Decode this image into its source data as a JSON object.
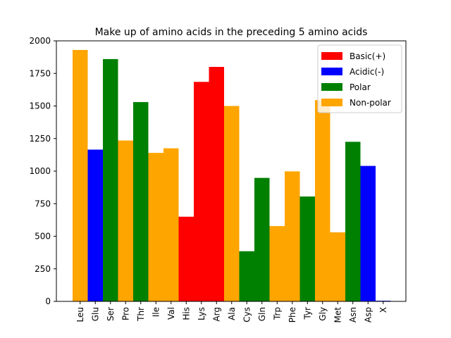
{
  "chart_data": {
    "type": "bar",
    "title": "Make up of amino acids in the preceding 5 amino acids",
    "xlabel": "",
    "ylabel": "",
    "ylim": [
      0,
      2000
    ],
    "yticks": [
      0,
      250,
      500,
      750,
      1000,
      1250,
      1500,
      1750,
      2000
    ],
    "grid": false,
    "legend_position": "top-right",
    "legend": [
      {
        "name": "Basic(+)",
        "color": "#ff0000"
      },
      {
        "name": "Acidic(-)",
        "color": "#0000ff"
      },
      {
        "name": "Polar",
        "color": "#008000"
      },
      {
        "name": "Non-polar",
        "color": "#ffa500"
      }
    ],
    "categories": [
      "Leu",
      "Glu",
      "Ser",
      "Pro",
      "Thr",
      "Ile",
      "Val",
      "His",
      "Lys",
      "Arg",
      "Ala",
      "Cys",
      "Gln",
      "Trp",
      "Phe",
      "Tyr",
      "Gly",
      "Met",
      "Asn",
      "Asp",
      "X"
    ],
    "values": [
      1930,
      1165,
      1860,
      1235,
      1530,
      1140,
      1175,
      650,
      1685,
      1800,
      1500,
      385,
      948,
      578,
      998,
      805,
      1545,
      530,
      1225,
      1040,
      5
    ],
    "bar_classes": [
      "Non-polar",
      "Acidic(-)",
      "Polar",
      "Non-polar",
      "Polar",
      "Non-polar",
      "Non-polar",
      "Basic(+)",
      "Basic(+)",
      "Basic(+)",
      "Non-polar",
      "Polar",
      "Polar",
      "Non-polar",
      "Non-polar",
      "Polar",
      "Non-polar",
      "Non-polar",
      "Polar",
      "Acidic(-)",
      "Acidic(-)"
    ]
  }
}
